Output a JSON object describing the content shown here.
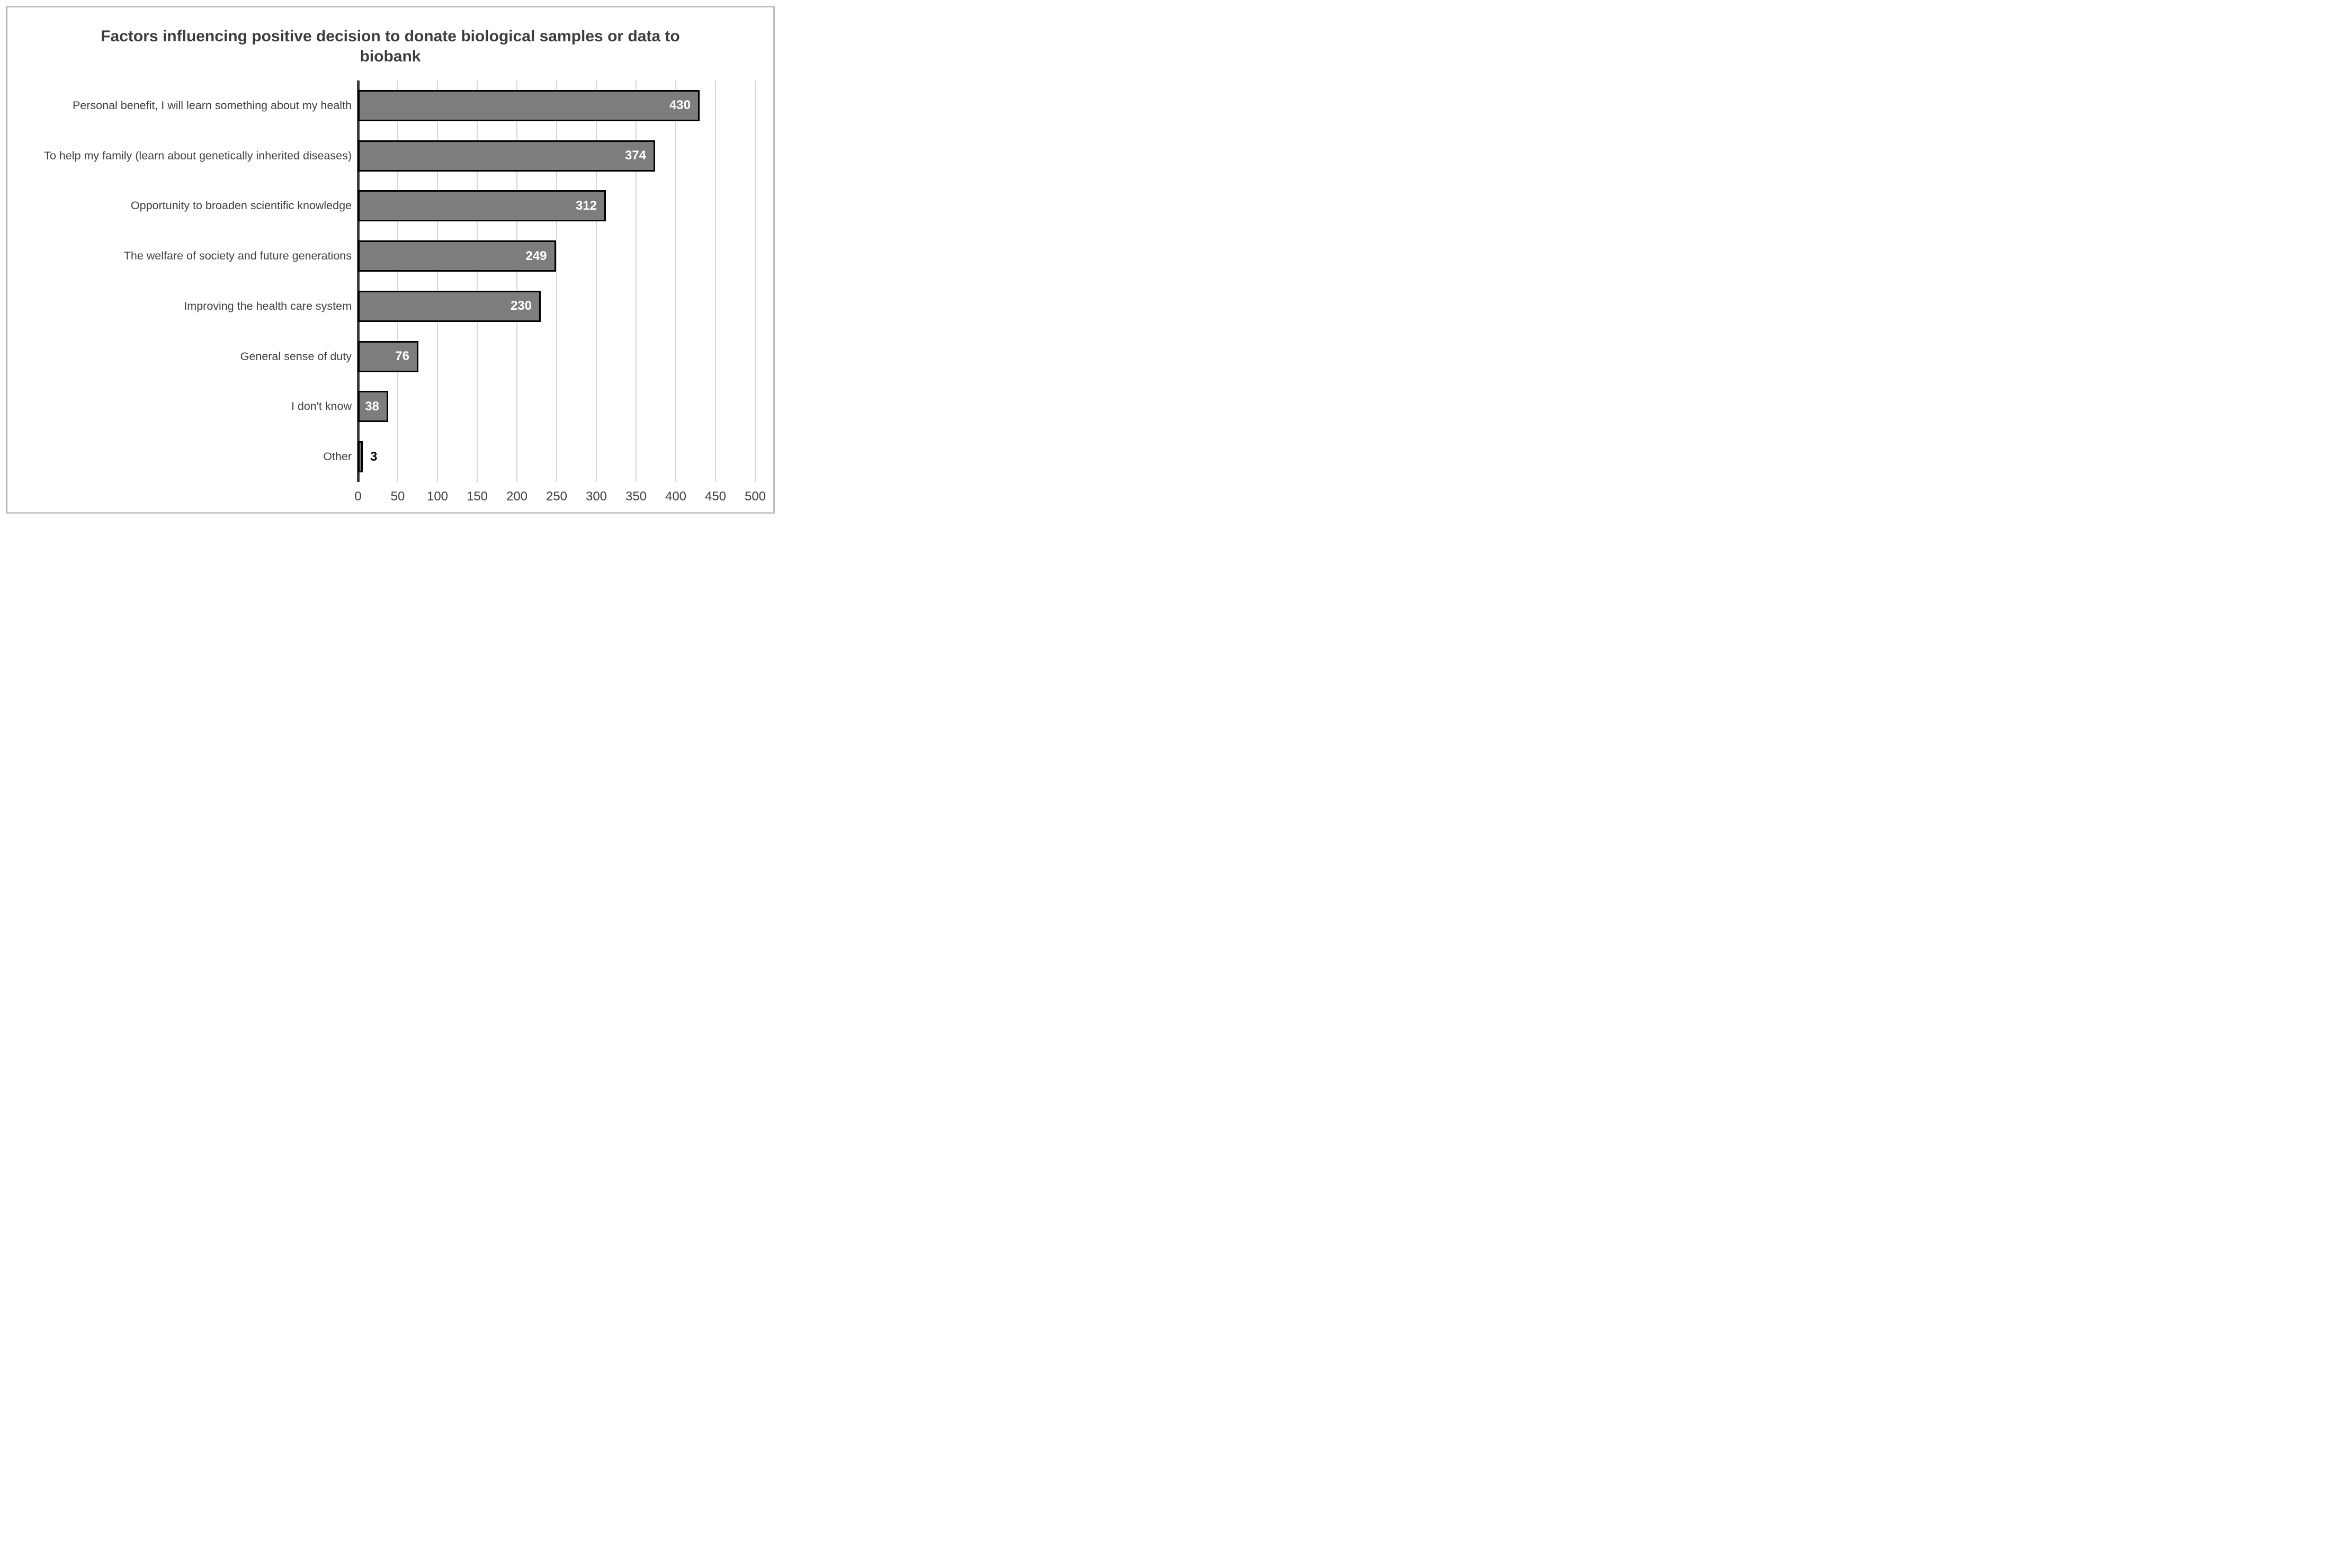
{
  "chart_data": {
    "type": "bar",
    "orientation": "horizontal",
    "title": "Factors influencing positive decision to donate biological samples or data to biobank",
    "title_line1": "Factors influencing positive decision to donate biological samples or data to",
    "title_line2": "biobank",
    "categories": [
      "Personal benefit, I will learn something about my health",
      "To help my family (learn about genetically inherited diseases)",
      "Opportunity to broaden scientific knowledge",
      "The welfare of society and future generations",
      "Improving the health care system",
      "General sense of duty",
      "I don't know",
      "Other"
    ],
    "values": [
      430,
      374,
      312,
      249,
      230,
      76,
      38,
      3
    ],
    "data_labels": [
      "430",
      "374",
      "312",
      "249",
      "230",
      "76",
      "38",
      "3"
    ],
    "xlabel": "",
    "ylabel": "",
    "xlim": [
      0,
      500
    ],
    "xticks": [
      0,
      50,
      100,
      150,
      200,
      250,
      300,
      350,
      400,
      450,
      500
    ],
    "grid": "vertical-only",
    "legend": "none",
    "colors": {
      "bar_fill": "#7d7d7d",
      "bar_border": "#000000",
      "label_inside": "#ffffff",
      "label_outside": "#000000",
      "gridline": "#d6d6d6",
      "axis_line": "#3a3a3a",
      "text": "#3f3f3f",
      "title_text": "#3d3d3d",
      "frame_border": "#bdbdbd"
    }
  }
}
